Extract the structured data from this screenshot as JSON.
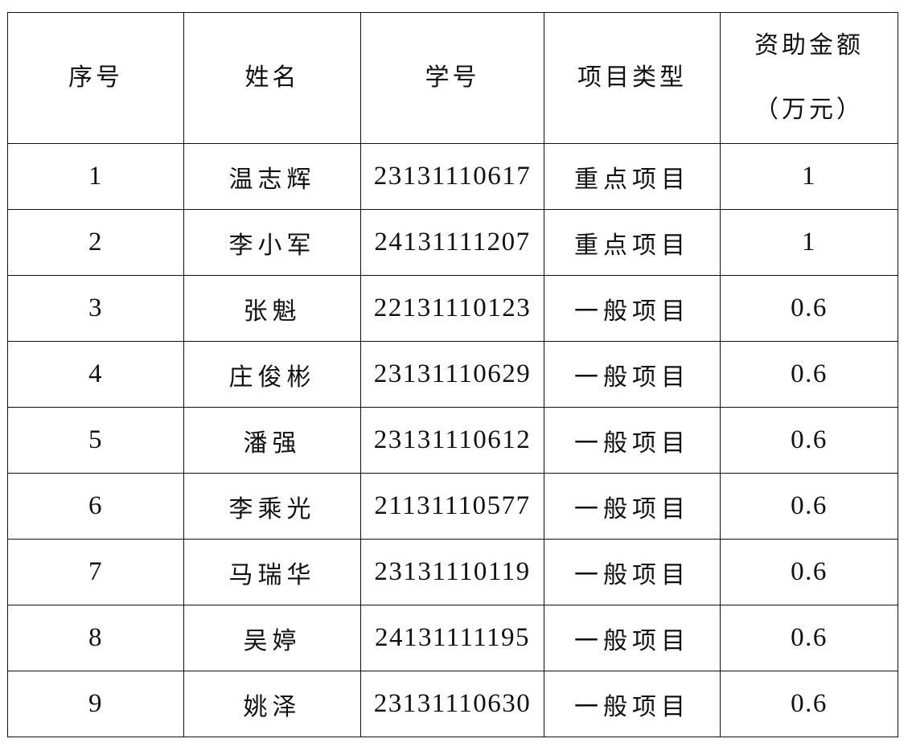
{
  "table": {
    "headers": [
      "序号",
      "姓名",
      "学号",
      "项目类型"
    ],
    "amount_header": [
      "资助金额",
      "（万元）"
    ],
    "rows": [
      {
        "no": "1",
        "name": "温志辉",
        "id": "23131110617",
        "type": "重点项目",
        "amount": "1"
      },
      {
        "no": "2",
        "name": "李小军",
        "id": "24131111207",
        "type": "重点项目",
        "amount": "1"
      },
      {
        "no": "3",
        "name": "张魁",
        "id": "22131110123",
        "type": "一般项目",
        "amount": "0.6"
      },
      {
        "no": "4",
        "name": "庄俊彬",
        "id": "23131110629",
        "type": "一般项目",
        "amount": "0.6"
      },
      {
        "no": "5",
        "name": "潘强",
        "id": "23131110612",
        "type": "一般项目",
        "amount": "0.6"
      },
      {
        "no": "6",
        "name": "李乘光",
        "id": "21131110577",
        "type": "一般项目",
        "amount": "0.6"
      },
      {
        "no": "7",
        "name": "马瑞华",
        "id": "23131110119",
        "type": "一般项目",
        "amount": "0.6"
      },
      {
        "no": "8",
        "name": "吴婷",
        "id": "24131111195",
        "type": "一般项目",
        "amount": "0.6"
      },
      {
        "no": "9",
        "name": "姚泽",
        "id": "23131110630",
        "type": "一般项目",
        "amount": "0.6"
      }
    ]
  }
}
